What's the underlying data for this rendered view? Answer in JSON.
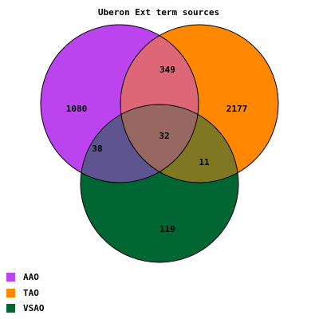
{
  "title": "Uberon Ext term sources",
  "sets": [
    {
      "name": "AAO",
      "color": "#bb44ee"
    },
    {
      "name": "TAO",
      "color": "#ff8800"
    },
    {
      "name": "VSAO",
      "color": "#006633"
    }
  ],
  "regions": {
    "aao_only": "1080",
    "tao_only": "2177",
    "vsao_only": "119",
    "aao_tao": "349",
    "aao_vsao": "38",
    "tao_vsao": "11",
    "all_three": "32"
  }
}
